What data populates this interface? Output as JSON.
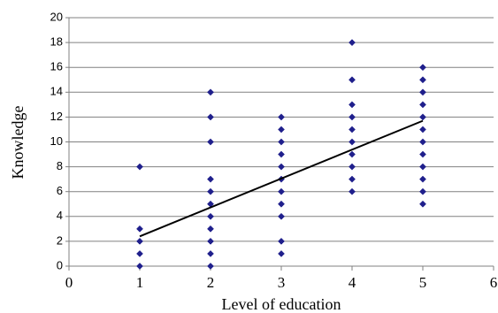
{
  "chart_data": {
    "type": "scatter",
    "xlabel": "Level of education",
    "ylabel": "Knowledge",
    "xlim": [
      0,
      6
    ],
    "ylim": [
      0,
      20
    ],
    "x_ticks": [
      0,
      1,
      2,
      3,
      4,
      5,
      6
    ],
    "y_ticks": [
      0,
      2,
      4,
      6,
      8,
      10,
      12,
      14,
      16,
      18,
      20
    ],
    "grid": "horizontal",
    "legend": "none",
    "marker_color": "#1F1F8C",
    "series": [
      {
        "points": [
          {
            "x": 1,
            "y": 0
          },
          {
            "x": 1,
            "y": 1
          },
          {
            "x": 1,
            "y": 2
          },
          {
            "x": 1,
            "y": 3
          },
          {
            "x": 1,
            "y": 8
          },
          {
            "x": 2,
            "y": 0
          },
          {
            "x": 2,
            "y": 1
          },
          {
            "x": 2,
            "y": 2
          },
          {
            "x": 2,
            "y": 3
          },
          {
            "x": 2,
            "y": 4
          },
          {
            "x": 2,
            "y": 5
          },
          {
            "x": 2,
            "y": 6
          },
          {
            "x": 2,
            "y": 7
          },
          {
            "x": 2,
            "y": 10
          },
          {
            "x": 2,
            "y": 12
          },
          {
            "x": 2,
            "y": 14
          },
          {
            "x": 3,
            "y": 1
          },
          {
            "x": 3,
            "y": 2
          },
          {
            "x": 3,
            "y": 4
          },
          {
            "x": 3,
            "y": 5
          },
          {
            "x": 3,
            "y": 6
          },
          {
            "x": 3,
            "y": 7
          },
          {
            "x": 3,
            "y": 8
          },
          {
            "x": 3,
            "y": 9
          },
          {
            "x": 3,
            "y": 10
          },
          {
            "x": 3,
            "y": 11
          },
          {
            "x": 3,
            "y": 12
          },
          {
            "x": 4,
            "y": 6
          },
          {
            "x": 4,
            "y": 7
          },
          {
            "x": 4,
            "y": 8
          },
          {
            "x": 4,
            "y": 9
          },
          {
            "x": 4,
            "y": 10
          },
          {
            "x": 4,
            "y": 11
          },
          {
            "x": 4,
            "y": 12
          },
          {
            "x": 4,
            "y": 13
          },
          {
            "x": 4,
            "y": 15
          },
          {
            "x": 4,
            "y": 18
          },
          {
            "x": 5,
            "y": 5
          },
          {
            "x": 5,
            "y": 6
          },
          {
            "x": 5,
            "y": 7
          },
          {
            "x": 5,
            "y": 8
          },
          {
            "x": 5,
            "y": 9
          },
          {
            "x": 5,
            "y": 10
          },
          {
            "x": 5,
            "y": 11
          },
          {
            "x": 5,
            "y": 12
          },
          {
            "x": 5,
            "y": 13
          },
          {
            "x": 5,
            "y": 14
          },
          {
            "x": 5,
            "y": 15
          },
          {
            "x": 5,
            "y": 16
          }
        ]
      }
    ],
    "trendline": {
      "type": "linear",
      "from": {
        "x": 1,
        "y": 2.4
      },
      "to": {
        "x": 5,
        "y": 11.7
      },
      "color": "#000000"
    }
  }
}
